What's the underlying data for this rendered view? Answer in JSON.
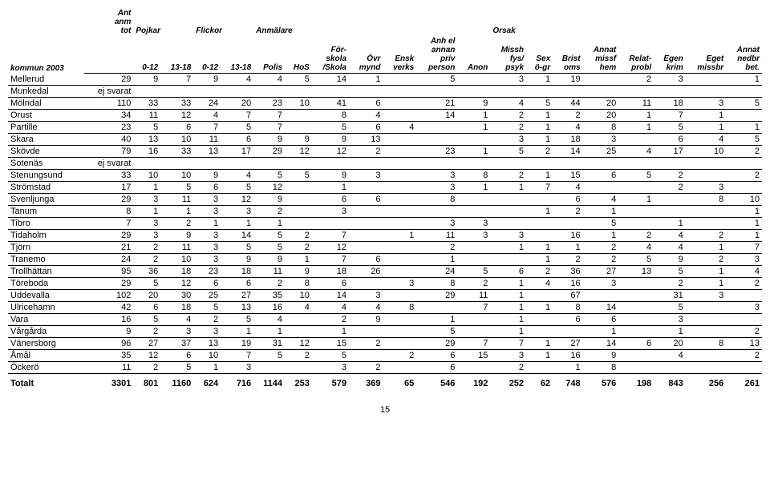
{
  "headers": {
    "row1": [
      "",
      "Ant anm tot",
      "Pojkar",
      "",
      "Flickor",
      "",
      "Anmälare",
      "",
      "",
      "",
      "",
      "",
      "",
      "Orsak",
      "",
      "",
      "",
      "",
      "",
      "",
      "",
      ""
    ],
    "row2": [
      "kommun 2003",
      "",
      "0-12",
      "13-18",
      "0-12",
      "13-18",
      "Polis",
      "HoS",
      "För-\nskola\n/Skola",
      "Övr\nmynd",
      "Ensk\nverks",
      "Anh el\nannan\npriv\nperson",
      "Anon",
      "Missh\nfys/\npsyk",
      "Sex\nö-gr",
      "Brist\noms",
      "Annat\nmissf\nhem",
      "Relat-\nprobl",
      "Egen\nkrim",
      "Eget\nmissbr",
      "Annat\nnedbr\nbet."
    ]
  },
  "rows": [
    {
      "k": "Mellerud",
      "v": [
        "29",
        "9",
        "7",
        "9",
        "4",
        "4",
        "5",
        "14",
        "1",
        "",
        "5",
        "",
        "3",
        "1",
        "19",
        "",
        "2",
        "3",
        "",
        "1"
      ]
    },
    {
      "k": "Munkedal",
      "v": [
        "ej svarat",
        "",
        "",
        "",
        "",
        "",
        "",
        "",
        "",
        "",
        "",
        "",
        "",
        "",
        "",
        "",
        "",
        "",
        "",
        ""
      ]
    },
    {
      "k": "Mölndal",
      "v": [
        "110",
        "33",
        "33",
        "24",
        "20",
        "23",
        "10",
        "41",
        "6",
        "",
        "21",
        "9",
        "4",
        "5",
        "44",
        "20",
        "11",
        "18",
        "3",
        "5"
      ]
    },
    {
      "k": "Orust",
      "v": [
        "34",
        "11",
        "12",
        "4",
        "7",
        "7",
        "",
        "8",
        "4",
        "",
        "14",
        "1",
        "2",
        "1",
        "2",
        "20",
        "1",
        "7",
        "1",
        ""
      ]
    },
    {
      "k": "Partille",
      "v": [
        "23",
        "5",
        "6",
        "7",
        "5",
        "7",
        "",
        "5",
        "6",
        "4",
        "",
        "1",
        "2",
        "1",
        "4",
        "8",
        "1",
        "5",
        "1",
        "1"
      ]
    },
    {
      "k": "Skara",
      "v": [
        "40",
        "13",
        "10",
        "11",
        "6",
        "9",
        "9",
        "9",
        "13",
        "",
        "",
        "",
        "3",
        "1",
        "18",
        "3",
        "",
        "6",
        "4",
        "5"
      ]
    },
    {
      "k": "Skövde",
      "v": [
        "79",
        "16",
        "33",
        "13",
        "17",
        "29",
        "12",
        "12",
        "2",
        "",
        "23",
        "1",
        "5",
        "2",
        "14",
        "25",
        "4",
        "17",
        "10",
        "2"
      ]
    },
    {
      "k": "Sotenäs",
      "v": [
        "ej svarat",
        "",
        "",
        "",
        "",
        "",
        "",
        "",
        "",
        "",
        "",
        "",
        "",
        "",
        "",
        "",
        "",
        "",
        "",
        ""
      ]
    },
    {
      "k": "Stenungsund",
      "v": [
        "33",
        "10",
        "10",
        "9",
        "4",
        "5",
        "5",
        "9",
        "3",
        "",
        "3",
        "8",
        "2",
        "1",
        "15",
        "6",
        "5",
        "2",
        "",
        "2"
      ]
    },
    {
      "k": "Strömstad",
      "v": [
        "17",
        "1",
        "5",
        "6",
        "5",
        "12",
        "",
        "1",
        "",
        "",
        "3",
        "1",
        "1",
        "7",
        "4",
        "",
        "",
        "2",
        "3",
        ""
      ]
    },
    {
      "k": "Svenljunga",
      "v": [
        "29",
        "3",
        "11",
        "3",
        "12",
        "9",
        "",
        "6",
        "6",
        "",
        "8",
        "",
        "",
        "",
        "6",
        "4",
        "1",
        "",
        "8",
        "10"
      ]
    },
    {
      "k": "Tanum",
      "v": [
        "8",
        "1",
        "1",
        "3",
        "3",
        "2",
        "",
        "3",
        "",
        "",
        "",
        "",
        "",
        "1",
        "2",
        "1",
        "",
        "",
        "",
        "1"
      ]
    },
    {
      "k": "Tibro",
      "v": [
        "7",
        "3",
        "2",
        "1",
        "1",
        "1",
        "",
        "",
        "",
        "",
        "3",
        "3",
        "",
        "",
        "",
        "5",
        "",
        "1",
        "",
        "1"
      ]
    },
    {
      "k": "Tidaholm",
      "v": [
        "29",
        "3",
        "9",
        "3",
        "14",
        "5",
        "2",
        "7",
        "",
        "1",
        "11",
        "3",
        "3",
        "",
        "16",
        "1",
        "2",
        "4",
        "2",
        "1"
      ]
    },
    {
      "k": "Tjörn",
      "v": [
        "21",
        "2",
        "11",
        "3",
        "5",
        "5",
        "2",
        "12",
        "",
        "",
        "2",
        "",
        "1",
        "1",
        "1",
        "2",
        "4",
        "4",
        "1",
        "7"
      ]
    },
    {
      "k": "Tranemo",
      "v": [
        "24",
        "2",
        "10",
        "3",
        "9",
        "9",
        "1",
        "7",
        "6",
        "",
        "1",
        "",
        "",
        "1",
        "2",
        "2",
        "5",
        "9",
        "2",
        "3"
      ]
    },
    {
      "k": "Trollhättan",
      "v": [
        "95",
        "36",
        "18",
        "23",
        "18",
        "11",
        "9",
        "18",
        "26",
        "",
        "24",
        "5",
        "6",
        "2",
        "36",
        "27",
        "13",
        "5",
        "1",
        "4"
      ]
    },
    {
      "k": "Töreboda",
      "v": [
        "29",
        "5",
        "12",
        "6",
        "6",
        "2",
        "8",
        "6",
        "",
        "3",
        "8",
        "2",
        "1",
        "4",
        "16",
        "3",
        "",
        "2",
        "1",
        "2"
      ]
    },
    {
      "k": "Uddevalla",
      "v": [
        "102",
        "20",
        "30",
        "25",
        "27",
        "35",
        "10",
        "14",
        "3",
        "",
        "29",
        "11",
        "1",
        "",
        "67",
        "",
        "",
        "31",
        "3",
        ""
      ]
    },
    {
      "k": "Ulricehamn",
      "v": [
        "42",
        "6",
        "18",
        "5",
        "13",
        "16",
        "4",
        "4",
        "4",
        "8",
        "",
        "7",
        "1",
        "1",
        "8",
        "14",
        "",
        "5",
        "",
        "3"
      ]
    },
    {
      "k": "Vara",
      "v": [
        "16",
        "5",
        "4",
        "2",
        "5",
        "4",
        "",
        "2",
        "9",
        "",
        "1",
        "",
        "1",
        "",
        "6",
        "6",
        "",
        "3",
        "",
        ""
      ]
    },
    {
      "k": "Vårgårda",
      "v": [
        "9",
        "2",
        "3",
        "3",
        "1",
        "1",
        "",
        "1",
        "",
        "",
        "5",
        "",
        "1",
        "",
        "",
        "1",
        "",
        "1",
        "",
        "2"
      ]
    },
    {
      "k": "Vänersborg",
      "v": [
        "96",
        "27",
        "37",
        "13",
        "19",
        "31",
        "12",
        "15",
        "2",
        "",
        "29",
        "7",
        "7",
        "1",
        "27",
        "14",
        "6",
        "20",
        "8",
        "13"
      ]
    },
    {
      "k": "Åmål",
      "v": [
        "35",
        "12",
        "6",
        "10",
        "7",
        "5",
        "2",
        "5",
        "",
        "2",
        "6",
        "15",
        "3",
        "1",
        "16",
        "9",
        "",
        "4",
        "",
        "2"
      ]
    },
    {
      "k": "Öckerö",
      "v": [
        "11",
        "2",
        "5",
        "1",
        "3",
        "",
        "",
        "3",
        "2",
        "",
        "6",
        "",
        "2",
        "",
        "1",
        "8",
        "",
        "",
        "",
        ""
      ]
    }
  ],
  "total": {
    "k": "Totalt",
    "v": [
      "3301",
      "801",
      "1160",
      "624",
      "716",
      "1144",
      "253",
      "579",
      "369",
      "65",
      "546",
      "192",
      "252",
      "62",
      "748",
      "576",
      "198",
      "843",
      "256",
      "261"
    ]
  },
  "page": "15"
}
